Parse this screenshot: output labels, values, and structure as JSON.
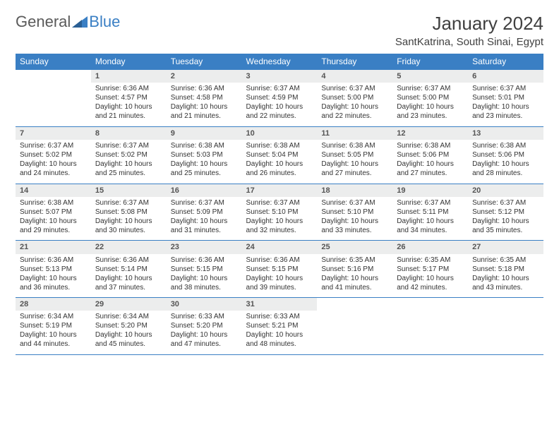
{
  "brand": {
    "part1": "General",
    "part2": "Blue"
  },
  "title": "January 2024",
  "location": "SantKatrina, South Sinai, Egypt",
  "colors": {
    "accent": "#3a7fc4",
    "header_text": "#ffffff",
    "daynum_bg": "#eceded",
    "body_text": "#333333",
    "title_text": "#404040"
  },
  "weekdays": [
    "Sunday",
    "Monday",
    "Tuesday",
    "Wednesday",
    "Thursday",
    "Friday",
    "Saturday"
  ],
  "weeks": [
    [
      null,
      {
        "n": "1",
        "sr": "Sunrise: 6:36 AM",
        "ss": "Sunset: 4:57 PM",
        "dl": "Daylight: 10 hours and 21 minutes."
      },
      {
        "n": "2",
        "sr": "Sunrise: 6:36 AM",
        "ss": "Sunset: 4:58 PM",
        "dl": "Daylight: 10 hours and 21 minutes."
      },
      {
        "n": "3",
        "sr": "Sunrise: 6:37 AM",
        "ss": "Sunset: 4:59 PM",
        "dl": "Daylight: 10 hours and 22 minutes."
      },
      {
        "n": "4",
        "sr": "Sunrise: 6:37 AM",
        "ss": "Sunset: 5:00 PM",
        "dl": "Daylight: 10 hours and 22 minutes."
      },
      {
        "n": "5",
        "sr": "Sunrise: 6:37 AM",
        "ss": "Sunset: 5:00 PM",
        "dl": "Daylight: 10 hours and 23 minutes."
      },
      {
        "n": "6",
        "sr": "Sunrise: 6:37 AM",
        "ss": "Sunset: 5:01 PM",
        "dl": "Daylight: 10 hours and 23 minutes."
      }
    ],
    [
      {
        "n": "7",
        "sr": "Sunrise: 6:37 AM",
        "ss": "Sunset: 5:02 PM",
        "dl": "Daylight: 10 hours and 24 minutes."
      },
      {
        "n": "8",
        "sr": "Sunrise: 6:37 AM",
        "ss": "Sunset: 5:02 PM",
        "dl": "Daylight: 10 hours and 25 minutes."
      },
      {
        "n": "9",
        "sr": "Sunrise: 6:38 AM",
        "ss": "Sunset: 5:03 PM",
        "dl": "Daylight: 10 hours and 25 minutes."
      },
      {
        "n": "10",
        "sr": "Sunrise: 6:38 AM",
        "ss": "Sunset: 5:04 PM",
        "dl": "Daylight: 10 hours and 26 minutes."
      },
      {
        "n": "11",
        "sr": "Sunrise: 6:38 AM",
        "ss": "Sunset: 5:05 PM",
        "dl": "Daylight: 10 hours and 27 minutes."
      },
      {
        "n": "12",
        "sr": "Sunrise: 6:38 AM",
        "ss": "Sunset: 5:06 PM",
        "dl": "Daylight: 10 hours and 27 minutes."
      },
      {
        "n": "13",
        "sr": "Sunrise: 6:38 AM",
        "ss": "Sunset: 5:06 PM",
        "dl": "Daylight: 10 hours and 28 minutes."
      }
    ],
    [
      {
        "n": "14",
        "sr": "Sunrise: 6:38 AM",
        "ss": "Sunset: 5:07 PM",
        "dl": "Daylight: 10 hours and 29 minutes."
      },
      {
        "n": "15",
        "sr": "Sunrise: 6:37 AM",
        "ss": "Sunset: 5:08 PM",
        "dl": "Daylight: 10 hours and 30 minutes."
      },
      {
        "n": "16",
        "sr": "Sunrise: 6:37 AM",
        "ss": "Sunset: 5:09 PM",
        "dl": "Daylight: 10 hours and 31 minutes."
      },
      {
        "n": "17",
        "sr": "Sunrise: 6:37 AM",
        "ss": "Sunset: 5:10 PM",
        "dl": "Daylight: 10 hours and 32 minutes."
      },
      {
        "n": "18",
        "sr": "Sunrise: 6:37 AM",
        "ss": "Sunset: 5:10 PM",
        "dl": "Daylight: 10 hours and 33 minutes."
      },
      {
        "n": "19",
        "sr": "Sunrise: 6:37 AM",
        "ss": "Sunset: 5:11 PM",
        "dl": "Daylight: 10 hours and 34 minutes."
      },
      {
        "n": "20",
        "sr": "Sunrise: 6:37 AM",
        "ss": "Sunset: 5:12 PM",
        "dl": "Daylight: 10 hours and 35 minutes."
      }
    ],
    [
      {
        "n": "21",
        "sr": "Sunrise: 6:36 AM",
        "ss": "Sunset: 5:13 PM",
        "dl": "Daylight: 10 hours and 36 minutes."
      },
      {
        "n": "22",
        "sr": "Sunrise: 6:36 AM",
        "ss": "Sunset: 5:14 PM",
        "dl": "Daylight: 10 hours and 37 minutes."
      },
      {
        "n": "23",
        "sr": "Sunrise: 6:36 AM",
        "ss": "Sunset: 5:15 PM",
        "dl": "Daylight: 10 hours and 38 minutes."
      },
      {
        "n": "24",
        "sr": "Sunrise: 6:36 AM",
        "ss": "Sunset: 5:15 PM",
        "dl": "Daylight: 10 hours and 39 minutes."
      },
      {
        "n": "25",
        "sr": "Sunrise: 6:35 AM",
        "ss": "Sunset: 5:16 PM",
        "dl": "Daylight: 10 hours and 41 minutes."
      },
      {
        "n": "26",
        "sr": "Sunrise: 6:35 AM",
        "ss": "Sunset: 5:17 PM",
        "dl": "Daylight: 10 hours and 42 minutes."
      },
      {
        "n": "27",
        "sr": "Sunrise: 6:35 AM",
        "ss": "Sunset: 5:18 PM",
        "dl": "Daylight: 10 hours and 43 minutes."
      }
    ],
    [
      {
        "n": "28",
        "sr": "Sunrise: 6:34 AM",
        "ss": "Sunset: 5:19 PM",
        "dl": "Daylight: 10 hours and 44 minutes."
      },
      {
        "n": "29",
        "sr": "Sunrise: 6:34 AM",
        "ss": "Sunset: 5:20 PM",
        "dl": "Daylight: 10 hours and 45 minutes."
      },
      {
        "n": "30",
        "sr": "Sunrise: 6:33 AM",
        "ss": "Sunset: 5:20 PM",
        "dl": "Daylight: 10 hours and 47 minutes."
      },
      {
        "n": "31",
        "sr": "Sunrise: 6:33 AM",
        "ss": "Sunset: 5:21 PM",
        "dl": "Daylight: 10 hours and 48 minutes."
      },
      null,
      null,
      null
    ]
  ]
}
